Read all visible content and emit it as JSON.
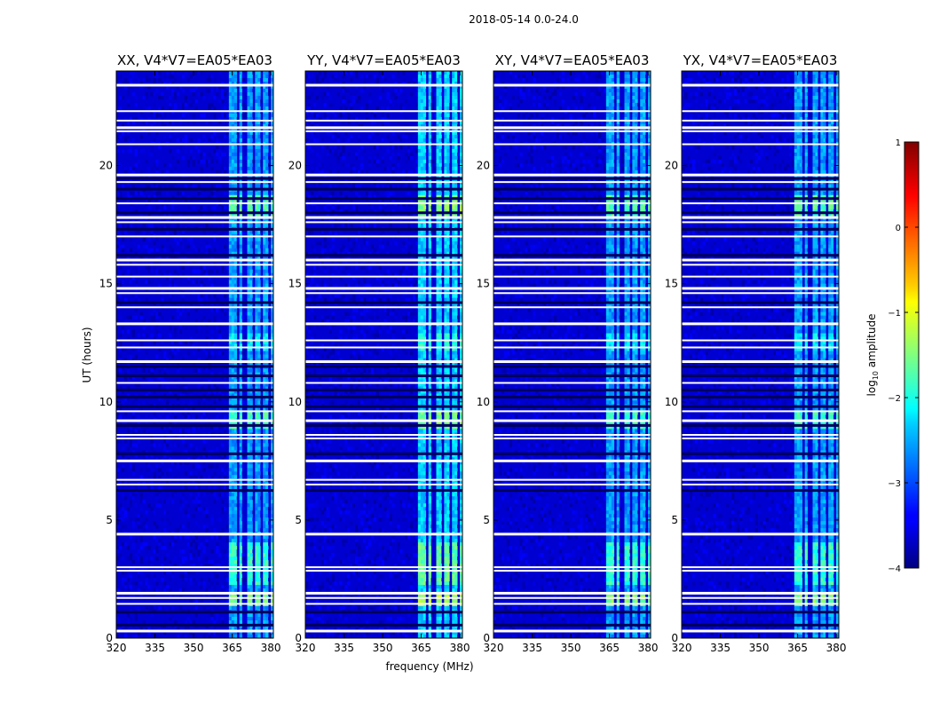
{
  "suptitle": "2018-05-14 0.0-24.0",
  "chart_data": {
    "type": "heatmap",
    "xlabel": "frequency (MHz)",
    "ylabel": "UT (hours)",
    "xlim": [
      320,
      381
    ],
    "ylim": [
      0,
      24
    ],
    "xticks": [
      320,
      335,
      350,
      365,
      380
    ],
    "yticks": [
      0,
      5,
      10,
      15,
      20
    ],
    "colormap": "jet",
    "colorbar": {
      "label": "log10 amplitude",
      "label_main": "log",
      "label_sub": "10",
      "label_rest": " amplitude",
      "range": [
        -4,
        1
      ],
      "ticks": [
        -4,
        -3,
        -2,
        -1,
        0,
        1
      ],
      "tick_labels": [
        "−4",
        "−3",
        "−2",
        "−1",
        "0",
        "1"
      ]
    },
    "panels": [
      {
        "title": "XX, V4*V7=EA05*EA03",
        "polarization": "XX"
      },
      {
        "title": "YY, V4*V7=EA05*EA03",
        "polarization": "YY"
      },
      {
        "title": "XY, V4*V7=EA05*EA03",
        "polarization": "XY"
      },
      {
        "title": "YX, V4*V7=EA05*EA03",
        "polarization": "YX"
      }
    ],
    "background_level": -3.6,
    "rfi_channels_mhz": [
      [
        363.5,
        366.5
      ],
      [
        367.5,
        369.0
      ],
      [
        370.5,
        372.5
      ],
      [
        374.0,
        375.5
      ],
      [
        377.0,
        378.5
      ],
      [
        379.5,
        380.5
      ]
    ],
    "flagged_hours": [
      23.4,
      22.3,
      21.9,
      21.6,
      21.45,
      20.9,
      19.6,
      19.3,
      18.4,
      17.8,
      17.6,
      17.0,
      16.0,
      15.8,
      15.3,
      14.8,
      14.6,
      14.0,
      13.3,
      12.6,
      12.3,
      11.7,
      10.8,
      9.6,
      9.2,
      8.6,
      8.45,
      7.5,
      6.7,
      6.5,
      4.4,
      3.0,
      2.85,
      1.9,
      1.7,
      1.45,
      0.3
    ],
    "dark_hours": [
      19.45,
      19.0,
      18.6,
      18.0,
      17.3,
      16.2,
      14.2,
      11.5,
      11.1,
      10.5,
      10.2,
      9.8,
      9.0,
      7.8,
      6.25,
      1.1,
      0.55
    ]
  }
}
